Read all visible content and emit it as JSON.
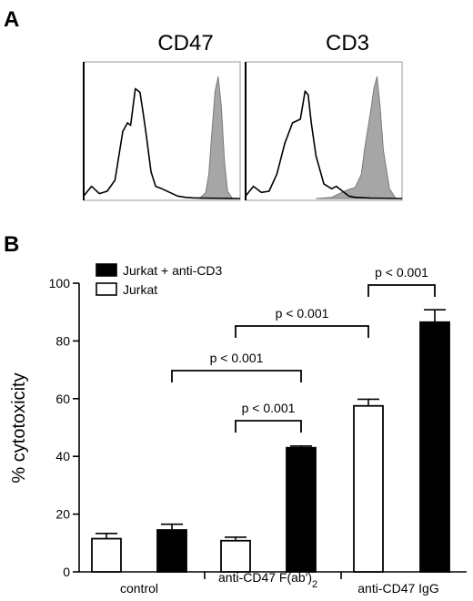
{
  "panel_a": {
    "letter": "A",
    "histograms": [
      {
        "title": "CD47"
      },
      {
        "title": "CD3"
      }
    ]
  },
  "panel_b": {
    "letter": "B",
    "ylabel": "% cytotoxicity",
    "group_labels": [
      "control",
      "anti-CD47 F(ab')",
      "anti-CD47 IgG"
    ],
    "group_label_subscript": "2",
    "p_label": "p < 0.001"
  },
  "colors": {
    "filled_bar": "#000000",
    "open_bar": "#ffffff",
    "histogram_fill": "#a6a6a6"
  },
  "chart_data": [
    {
      "type": "area",
      "title": "CD47",
      "xlabel": "",
      "ylabel": "",
      "series": [
        {
          "style": "open outline (isotype)",
          "x": [
            0,
            0.05,
            0.1,
            0.15,
            0.2,
            0.25,
            0.28,
            0.3,
            0.33,
            0.36,
            0.38,
            0.4,
            0.43,
            0.46,
            0.5,
            0.55,
            0.6,
            0.65,
            0.7,
            0.8,
            1.0
          ],
          "values": [
            0.02,
            0.1,
            0.04,
            0.06,
            0.15,
            0.55,
            0.62,
            0.6,
            0.9,
            0.87,
            0.7,
            0.52,
            0.22,
            0.1,
            0.08,
            0.05,
            0.02,
            0.01,
            0.005,
            0.002,
            0
          ]
        },
        {
          "style": "grey filled (stained)",
          "x": [
            0.74,
            0.78,
            0.8,
            0.82,
            0.84,
            0.86,
            0.88,
            0.9,
            0.92,
            0.95
          ],
          "values": [
            0,
            0.05,
            0.2,
            0.55,
            0.88,
            1.0,
            0.75,
            0.3,
            0.06,
            0
          ]
        }
      ]
    },
    {
      "type": "area",
      "title": "CD3",
      "xlabel": "",
      "ylabel": "",
      "series": [
        {
          "style": "open outline (isotype)",
          "x": [
            0,
            0.05,
            0.1,
            0.15,
            0.2,
            0.25,
            0.3,
            0.35,
            0.38,
            0.4,
            0.42,
            0.45,
            0.5,
            0.55,
            0.58,
            0.62,
            0.66,
            0.7,
            0.8,
            1.0
          ],
          "values": [
            0.02,
            0.1,
            0.05,
            0.06,
            0.2,
            0.45,
            0.62,
            0.65,
            0.88,
            0.85,
            0.62,
            0.35,
            0.12,
            0.08,
            0.1,
            0.06,
            0.02,
            0.01,
            0.003,
            0
          ]
        },
        {
          "style": "grey filled (stained)",
          "x": [
            0.45,
            0.55,
            0.6,
            0.65,
            0.7,
            0.74,
            0.76,
            0.8,
            0.82,
            0.84,
            0.86,
            0.88,
            0.92,
            0.96
          ],
          "values": [
            0,
            0.01,
            0.04,
            0.07,
            0.09,
            0.2,
            0.4,
            0.72,
            0.9,
            1.0,
            0.75,
            0.4,
            0.08,
            0
          ]
        }
      ]
    },
    {
      "type": "bar",
      "title": "",
      "xlabel": "",
      "ylabel": "% cytotoxicity",
      "ylim": [
        0,
        100
      ],
      "yticks": [
        0,
        20,
        40,
        60,
        80,
        100
      ],
      "legend_position": "top-left",
      "categories": [
        "control",
        "anti-CD47 F(ab')2",
        "anti-CD47 IgG"
      ],
      "series": [
        {
          "name": "Jurkat",
          "style": "open",
          "values": [
            11.5,
            10.8,
            57.5
          ],
          "errors": [
            1.8,
            1.2,
            2.3
          ]
        },
        {
          "name": "Jurkat + anti-CD3",
          "style": "filled",
          "values": [
            14.5,
            43,
            86.5
          ],
          "errors": [
            2.0,
            0.6,
            4.3
          ]
        }
      ],
      "annotations": [
        {
          "text": "p < 0.001",
          "from": "anti-CD47 F(ab')2 / Jurkat",
          "to": "anti-CD47 F(ab')2 / Jurkat + anti-CD3"
        },
        {
          "text": "p < 0.001",
          "from": "control / Jurkat + anti-CD3",
          "to": "anti-CD47 F(ab')2 / Jurkat + anti-CD3"
        },
        {
          "text": "p < 0.001",
          "from": "anti-CD47 F(ab')2 / Jurkat",
          "to": "anti-CD47 IgG / Jurkat"
        },
        {
          "text": "p < 0.001",
          "from": "anti-CD47 IgG / Jurkat",
          "to": "anti-CD47 IgG / Jurkat + anti-CD3"
        }
      ]
    }
  ]
}
